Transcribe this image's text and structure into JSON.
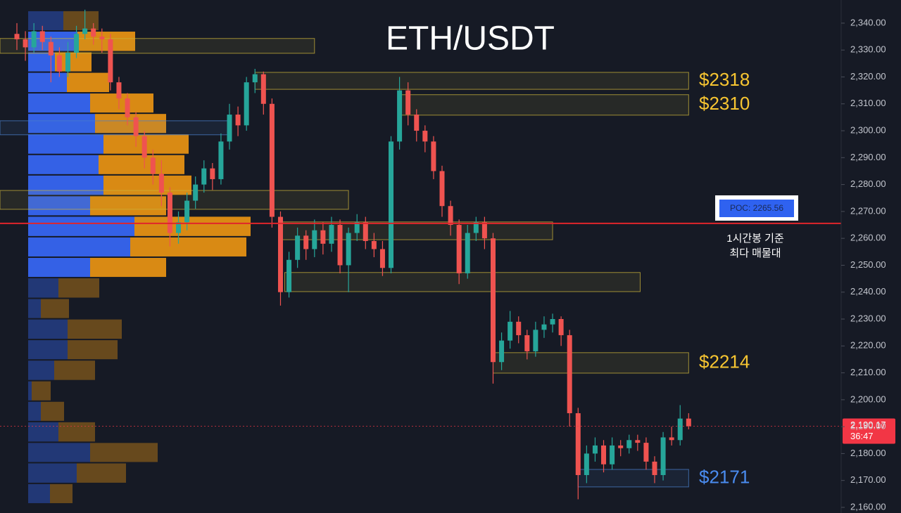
{
  "chart_data": {
    "type": "candlestick",
    "title": "ETH/USDT",
    "ylim": [
      2157.9,
      2348.6
    ],
    "yticks": [
      {
        "value": 2340,
        "label": "2,340.00"
      },
      {
        "value": 2330,
        "label": "2,330.00"
      },
      {
        "value": 2320,
        "label": "2,320.00"
      },
      {
        "value": 2310,
        "label": "2,310.00"
      },
      {
        "value": 2300,
        "label": "2,300.00"
      },
      {
        "value": 2290,
        "label": "2,290.00"
      },
      {
        "value": 2280,
        "label": "2,280.00"
      },
      {
        "value": 2270,
        "label": "2,270.00"
      },
      {
        "value": 2260,
        "label": "2,260.00"
      },
      {
        "value": 2250,
        "label": "2,250.00"
      },
      {
        "value": 2240,
        "label": "2,240.00"
      },
      {
        "value": 2230,
        "label": "2,230.00"
      },
      {
        "value": 2220,
        "label": "2,220.00"
      },
      {
        "value": 2210,
        "label": "2,210.00"
      },
      {
        "value": 2200,
        "label": "2,200.00"
      },
      {
        "value": 2190,
        "label": "2,190.00"
      },
      {
        "value": 2180,
        "label": "2,180.00"
      },
      {
        "value": 2170,
        "label": "2,170.00"
      },
      {
        "value": 2160,
        "label": "2,160.00"
      }
    ],
    "up_color": "#26a69a",
    "down_color": "#ef5350",
    "open": [
      2336,
      2334,
      2331,
      2337,
      2333,
      2328,
      2322,
      2329,
      2336,
      2338,
      2335,
      2334,
      2318,
      2312,
      2305,
      2298,
      2290,
      2284,
      2277,
      2262,
      2266,
      2274,
      2280,
      2286,
      2282,
      2296,
      2306,
      2302,
      2318,
      2321,
      2310,
      2268,
      2240,
      2252,
      2261,
      2256,
      2263,
      2258,
      2265,
      2250,
      2262,
      2266,
      2259,
      2256,
      2249,
      2296,
      2315,
      2306,
      2300,
      2296,
      2285,
      2272,
      2265,
      2247,
      2262,
      2266,
      2260,
      2214,
      2222,
      2229,
      2224,
      2218,
      2226,
      2228,
      2230,
      2224,
      2195,
      2172,
      2180,
      2183,
      2176,
      2183,
      2182,
      2185,
      2184,
      2177,
      2172,
      2186,
      2185,
      2193
    ],
    "high": [
      2340,
      2337,
      2340,
      2339,
      2335,
      2331,
      2333,
      2339,
      2345,
      2340,
      2338,
      2336,
      2320,
      2314,
      2307,
      2300,
      2293,
      2289,
      2279,
      2270,
      2277,
      2283,
      2289,
      2288,
      2299,
      2310,
      2309,
      2320,
      2323,
      2322,
      2312,
      2270,
      2255,
      2264,
      2263,
      2267,
      2266,
      2268,
      2267,
      2264,
      2269,
      2268,
      2262,
      2259,
      2298,
      2320,
      2318,
      2308,
      2302,
      2298,
      2287,
      2274,
      2267,
      2265,
      2268,
      2268,
      2262,
      2225,
      2233,
      2231,
      2226,
      2229,
      2231,
      2232,
      2231,
      2226,
      2197,
      2183,
      2186,
      2185,
      2186,
      2185,
      2187,
      2187,
      2186,
      2179,
      2188,
      2190,
      2198,
      2195
    ],
    "low": [
      2330,
      2326,
      2329,
      2330,
      2318,
      2320,
      2320,
      2327,
      2334,
      2332,
      2329,
      2315,
      2308,
      2302,
      2294,
      2286,
      2280,
      2272,
      2257,
      2258,
      2263,
      2271,
      2277,
      2278,
      2280,
      2293,
      2298,
      2300,
      2314,
      2306,
      2264,
      2235,
      2238,
      2249,
      2252,
      2253,
      2254,
      2255,
      2247,
      2240,
      2259,
      2256,
      2253,
      2246,
      2247,
      2293,
      2302,
      2296,
      2292,
      2282,
      2268,
      2261,
      2243,
      2245,
      2259,
      2256,
      2206,
      2211,
      2219,
      2221,
      2215,
      2216,
      2223,
      2225,
      2220,
      2190,
      2163,
      2169,
      2177,
      2173,
      2174,
      2179,
      2180,
      2181,
      2174,
      2169,
      2170,
      2183,
      2183,
      2189
    ],
    "close": [
      2334,
      2331,
      2337,
      2333,
      2328,
      2322,
      2329,
      2336,
      2338,
      2335,
      2334,
      2318,
      2312,
      2305,
      2298,
      2290,
      2284,
      2277,
      2262,
      2266,
      2274,
      2280,
      2286,
      2282,
      2296,
      2306,
      2302,
      2318,
      2321,
      2310,
      2268,
      2240,
      2252,
      2261,
      2256,
      2263,
      2258,
      2265,
      2250,
      2262,
      2266,
      2259,
      2256,
      2249,
      2296,
      2315,
      2306,
      2300,
      2296,
      2285,
      2272,
      2265,
      2247,
      2262,
      2266,
      2260,
      2214,
      2222,
      2229,
      2224,
      2218,
      2226,
      2228,
      2230,
      2224,
      2195,
      2172,
      2180,
      2183,
      2176,
      2183,
      2182,
      2185,
      2184,
      2177,
      2172,
      2186,
      2185,
      2193,
      2190.17
    ],
    "volume_profile": {
      "bins": [
        2344.7,
        2337.1,
        2329.4,
        2321.8,
        2314.1,
        2306.5,
        2298.9,
        2291.2,
        2283.6,
        2275.9,
        2268.3,
        2260.6,
        2253.0,
        2245.4,
        2237.7,
        2230.1,
        2222.4,
        2214.8,
        2207.1,
        2199.5,
        2191.9,
        2184.2,
        2176.6,
        2168.9,
        2161.3
      ],
      "buy": [
        50,
        70,
        38,
        55,
        88,
        95,
        107,
        100,
        107,
        88,
        151,
        145,
        88,
        43,
        18,
        56,
        56,
        37,
        5,
        18,
        43,
        88,
        69,
        31
      ],
      "sell": [
        50,
        82,
        52,
        60,
        90,
        101,
        121,
        122,
        125,
        108,
        165,
        165,
        108,
        58,
        40,
        77,
        71,
        58,
        27,
        33,
        52,
        96,
        70,
        32
      ],
      "buy_color": "#3461e6",
      "sell_color": "#d98a14",
      "value_area": [
        2245.4,
        2337.1
      ]
    },
    "zones": [
      {
        "top": 2334.3,
        "bottom": 2328.8,
        "from": -2,
        "to": 35,
        "color": "#c9b23a"
      },
      {
        "top": 2321.7,
        "bottom": 2315.4,
        "from": 28,
        "to": 79,
        "color": "#c9b23a",
        "label": "$2318"
      },
      {
        "top": 2313.4,
        "bottom": 2305.8,
        "from": 45,
        "to": 79,
        "color": "#c9b23a",
        "label": "$2310"
      },
      {
        "top": 2303.7,
        "bottom": 2298.5,
        "from": -2,
        "to": 25,
        "color": "#4a7fc9"
      },
      {
        "top": 2277.8,
        "bottom": 2270.8,
        "from": -2,
        "to": 39,
        "color": "#c9b23a"
      },
      {
        "top": 2266.1,
        "bottom": 2259.5,
        "from": 31,
        "to": 63,
        "color": "#c9b23a"
      },
      {
        "top": 2247.3,
        "bottom": 2240.2,
        "from": 31.5,
        "to": 73.3,
        "color": "#c9b23a"
      },
      {
        "top": 2217.5,
        "bottom": 2209.9,
        "from": 56,
        "to": 79,
        "color": "#c9b23a",
        "label": "$2214"
      },
      {
        "top": 2174.1,
        "bottom": 2167.6,
        "from": 66,
        "to": 79,
        "color": "#4a7fc9",
        "label": "$2171"
      }
    ],
    "poc": {
      "value": 2265.56,
      "label": "POC: 2265.56",
      "color": "#e0252b",
      "note": [
        "1시간봉 기준",
        "최다 매물대"
      ]
    },
    "last_price": {
      "value": 2190.17,
      "label": "2,190.17",
      "countdown": "36:47",
      "color": "#f23645"
    }
  }
}
